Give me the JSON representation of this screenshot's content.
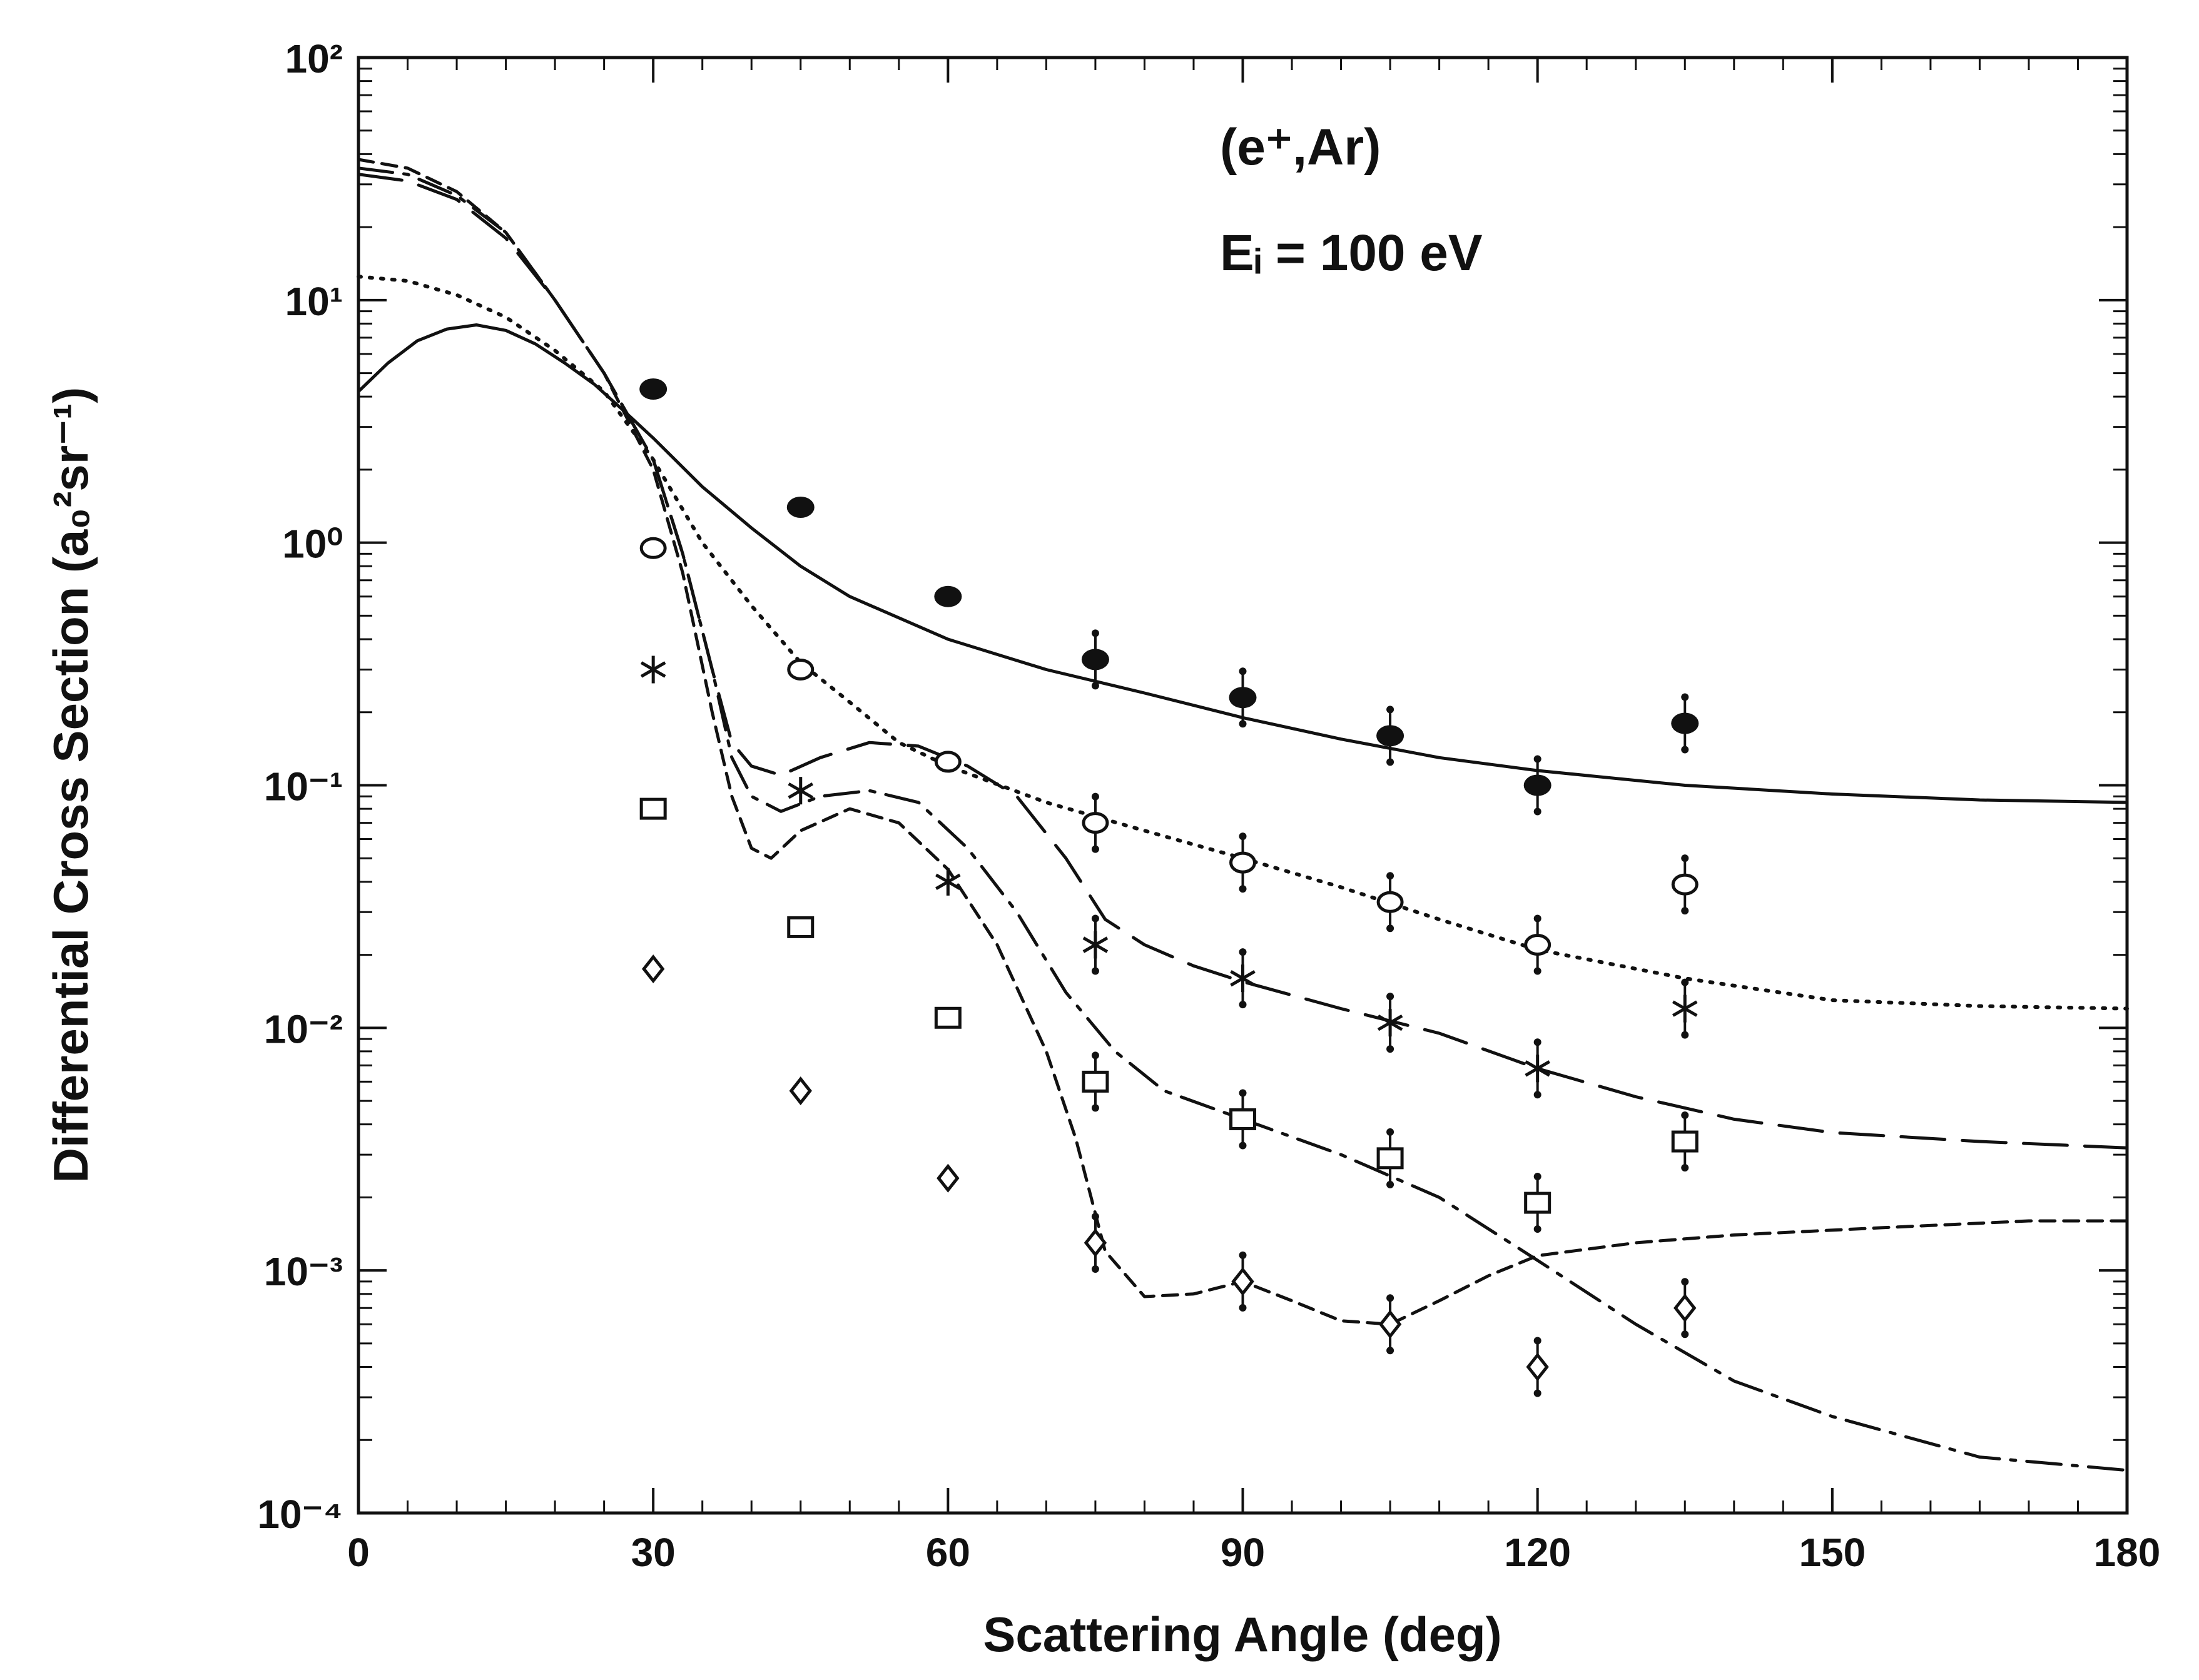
{
  "chart_data": {
    "type": "line",
    "title": "",
    "annotation": {
      "target": "(e⁺,Ar)",
      "energy": "Eᵢ = 100 eV"
    },
    "xlabel": "Scattering Angle (deg)",
    "ylabel": "Differential Cross Section (a₀²sr⁻¹)",
    "xlim": [
      0,
      180
    ],
    "ylim": [
      0.0001,
      100
    ],
    "yscale": "log",
    "x_ticks": [
      "0",
      "30",
      "60",
      "90",
      "120",
      "150",
      "180"
    ],
    "y_ticks": [
      "10²",
      "10¹",
      "10⁰",
      "10⁻¹",
      "10⁻²",
      "10⁻³",
      "10⁻⁴"
    ],
    "grid": false,
    "series": [
      {
        "name": "solid curve",
        "style": "solid",
        "points": [
          [
            0,
            4.2
          ],
          [
            3,
            5.5
          ],
          [
            6,
            6.8
          ],
          [
            9,
            7.6
          ],
          [
            12,
            7.9
          ],
          [
            15,
            7.5
          ],
          [
            18,
            6.6
          ],
          [
            21,
            5.5
          ],
          [
            24,
            4.5
          ],
          [
            27,
            3.5
          ],
          [
            30,
            2.7
          ],
          [
            35,
            1.7
          ],
          [
            40,
            1.15
          ],
          [
            45,
            0.8
          ],
          [
            50,
            0.6
          ],
          [
            60,
            0.4
          ],
          [
            70,
            0.3
          ],
          [
            80,
            0.24
          ],
          [
            90,
            0.19
          ],
          [
            100,
            0.155
          ],
          [
            110,
            0.13
          ],
          [
            120,
            0.115
          ],
          [
            135,
            0.1
          ],
          [
            150,
            0.092
          ],
          [
            165,
            0.087
          ],
          [
            180,
            0.085
          ]
        ]
      },
      {
        "name": "dotted curve",
        "style": "dotted",
        "points": [
          [
            0,
            12.5
          ],
          [
            5,
            12
          ],
          [
            10,
            10.5
          ],
          [
            15,
            8.5
          ],
          [
            20,
            6.2
          ],
          [
            25,
            4.2
          ],
          [
            30,
            2.2
          ],
          [
            35,
            1.0
          ],
          [
            40,
            0.55
          ],
          [
            45,
            0.32
          ],
          [
            50,
            0.22
          ],
          [
            55,
            0.15
          ],
          [
            60,
            0.12
          ],
          [
            70,
            0.085
          ],
          [
            80,
            0.065
          ],
          [
            90,
            0.05
          ],
          [
            100,
            0.038
          ],
          [
            110,
            0.028
          ],
          [
            120,
            0.021
          ],
          [
            135,
            0.016
          ],
          [
            150,
            0.013
          ],
          [
            165,
            0.0123
          ],
          [
            180,
            0.012
          ]
        ]
      },
      {
        "name": "long-dash curve",
        "style": "long-dash",
        "points": [
          [
            0,
            33
          ],
          [
            5,
            31
          ],
          [
            10,
            26
          ],
          [
            15,
            18
          ],
          [
            20,
            10
          ],
          [
            25,
            5
          ],
          [
            30,
            2.2
          ],
          [
            33,
            0.9
          ],
          [
            36,
            0.3
          ],
          [
            38,
            0.15
          ],
          [
            40,
            0.12
          ],
          [
            43,
            0.11
          ],
          [
            47,
            0.13
          ],
          [
            52,
            0.15
          ],
          [
            57,
            0.145
          ],
          [
            62,
            0.12
          ],
          [
            67,
            0.09
          ],
          [
            72,
            0.05
          ],
          [
            76,
            0.028
          ],
          [
            80,
            0.022
          ],
          [
            85,
            0.018
          ],
          [
            90,
            0.0155
          ],
          [
            100,
            0.012
          ],
          [
            110,
            0.0095
          ],
          [
            120,
            0.0068
          ],
          [
            130,
            0.0052
          ],
          [
            140,
            0.0042
          ],
          [
            150,
            0.0037
          ],
          [
            165,
            0.0034
          ],
          [
            180,
            0.0032
          ]
        ]
      },
      {
        "name": "dash-dot curve",
        "style": "dash-dot",
        "points": [
          [
            0,
            35
          ],
          [
            5,
            33
          ],
          [
            10,
            27
          ],
          [
            15,
            19
          ],
          [
            20,
            10
          ],
          [
            25,
            5
          ],
          [
            30,
            2.2
          ],
          [
            33,
            0.9
          ],
          [
            36,
            0.3
          ],
          [
            38,
            0.13
          ],
          [
            40,
            0.09
          ],
          [
            43,
            0.078
          ],
          [
            47,
            0.09
          ],
          [
            52,
            0.095
          ],
          [
            57,
            0.085
          ],
          [
            62,
            0.055
          ],
          [
            67,
            0.03
          ],
          [
            72,
            0.014
          ],
          [
            77,
            0.008
          ],
          [
            82,
            0.0055
          ],
          [
            90,
            0.0042
          ],
          [
            100,
            0.003
          ],
          [
            110,
            0.002
          ],
          [
            120,
            0.0011
          ],
          [
            130,
            0.0006
          ],
          [
            140,
            0.00035
          ],
          [
            150,
            0.00025
          ],
          [
            165,
            0.00017
          ],
          [
            180,
            0.00015
          ]
        ]
      },
      {
        "name": "short-dash curve",
        "style": "short-dash",
        "points": [
          [
            0,
            38
          ],
          [
            5,
            35
          ],
          [
            10,
            28
          ],
          [
            15,
            19
          ],
          [
            20,
            10
          ],
          [
            25,
            5
          ],
          [
            30,
            2.0
          ],
          [
            33,
            0.75
          ],
          [
            36,
            0.2
          ],
          [
            38,
            0.09
          ],
          [
            40,
            0.055
          ],
          [
            42,
            0.05
          ],
          [
            45,
            0.065
          ],
          [
            50,
            0.08
          ],
          [
            55,
            0.07
          ],
          [
            60,
            0.045
          ],
          [
            65,
            0.022
          ],
          [
            70,
            0.008
          ],
          [
            73,
            0.0035
          ],
          [
            76,
            0.0012
          ],
          [
            80,
            0.00078
          ],
          [
            85,
            0.0008
          ],
          [
            90,
            0.0009
          ],
          [
            95,
            0.00075
          ],
          [
            100,
            0.00062
          ],
          [
            105,
            0.0006
          ],
          [
            110,
            0.00075
          ],
          [
            115,
            0.00095
          ],
          [
            120,
            0.00115
          ],
          [
            130,
            0.0013
          ],
          [
            140,
            0.0014
          ],
          [
            155,
            0.0015
          ],
          [
            170,
            0.0016
          ],
          [
            180,
            0.0016
          ]
        ]
      }
    ],
    "markers": [
      {
        "name": "filled circles",
        "symbol": "filled-circle",
        "points": [
          [
            30,
            4.3
          ],
          [
            45,
            1.4
          ],
          [
            60,
            0.6
          ],
          [
            75,
            0.33
          ],
          [
            90,
            0.23
          ],
          [
            105,
            0.16
          ],
          [
            120,
            0.1
          ],
          [
            135,
            0.18
          ]
        ]
      },
      {
        "name": "open circles",
        "symbol": "open-circle",
        "points": [
          [
            30,
            0.95
          ],
          [
            45,
            0.3
          ],
          [
            60,
            0.125
          ],
          [
            75,
            0.07
          ],
          [
            90,
            0.048
          ],
          [
            105,
            0.033
          ],
          [
            120,
            0.022
          ],
          [
            135,
            0.039
          ]
        ]
      },
      {
        "name": "asterisks",
        "symbol": "asterisk",
        "points": [
          [
            30,
            0.3
          ],
          [
            45,
            0.095
          ],
          [
            60,
            0.04
          ],
          [
            75,
            0.022
          ],
          [
            90,
            0.016
          ],
          [
            105,
            0.0105
          ],
          [
            120,
            0.0068
          ],
          [
            135,
            0.012
          ]
        ]
      },
      {
        "name": "open squares",
        "symbol": "open-square",
        "points": [
          [
            30,
            0.08
          ],
          [
            45,
            0.026
          ],
          [
            60,
            0.011
          ],
          [
            75,
            0.006
          ],
          [
            90,
            0.0042
          ],
          [
            105,
            0.0029
          ],
          [
            120,
            0.0019
          ],
          [
            135,
            0.0034
          ]
        ]
      },
      {
        "name": "open diamonds",
        "symbol": "open-diamond",
        "points": [
          [
            30,
            0.0175
          ],
          [
            45,
            0.0055
          ],
          [
            60,
            0.0024
          ],
          [
            75,
            0.0013
          ],
          [
            90,
            0.0009
          ],
          [
            105,
            0.0006
          ],
          [
            120,
            0.0004
          ],
          [
            135,
            0.0007
          ]
        ]
      }
    ]
  }
}
